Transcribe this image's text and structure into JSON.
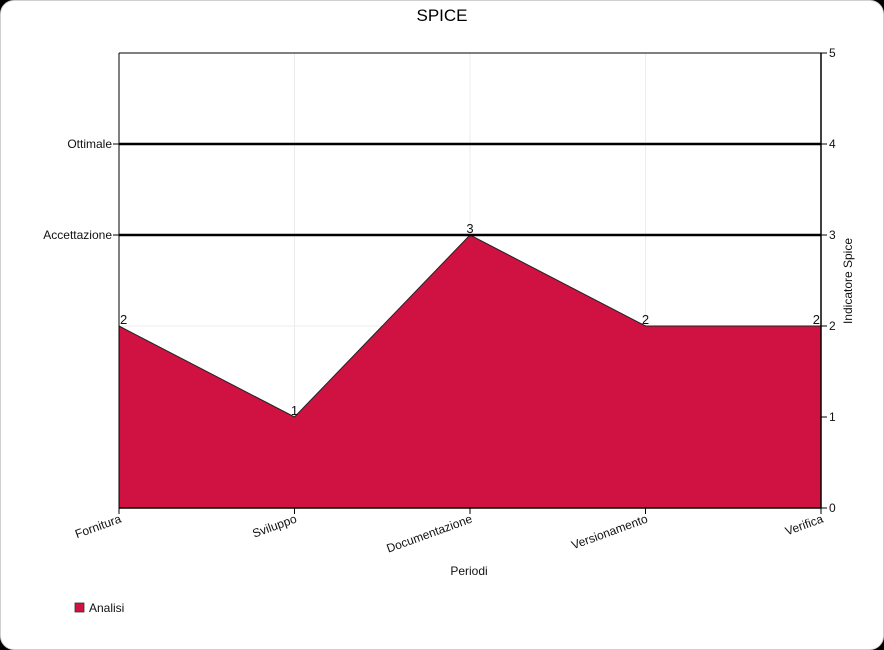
{
  "chart_data": {
    "type": "area",
    "title": "SPICE",
    "xlabel": "Periodi",
    "ylabel": "Indicatore Spice",
    "categories": [
      "Fornitura",
      "Sviluppo",
      "Documentazione",
      "Versionamento",
      "Verifica"
    ],
    "series": [
      {
        "name": "Analisi",
        "values": [
          2,
          1,
          3,
          2,
          2
        ],
        "color": "#cf1242"
      }
    ],
    "ylim": [
      0,
      5
    ],
    "yticks": [
      0,
      1,
      2,
      3,
      4,
      5
    ],
    "grid": true,
    "reference_lines": [
      {
        "label": "Ottimale",
        "value": 4
      },
      {
        "label": "Accettazione",
        "value": 3
      }
    ],
    "legend_position": "bottom-left",
    "colors": {
      "area": "#cf1242",
      "outline": "#222222",
      "grid": "#ececec",
      "reference": "#000000"
    }
  }
}
